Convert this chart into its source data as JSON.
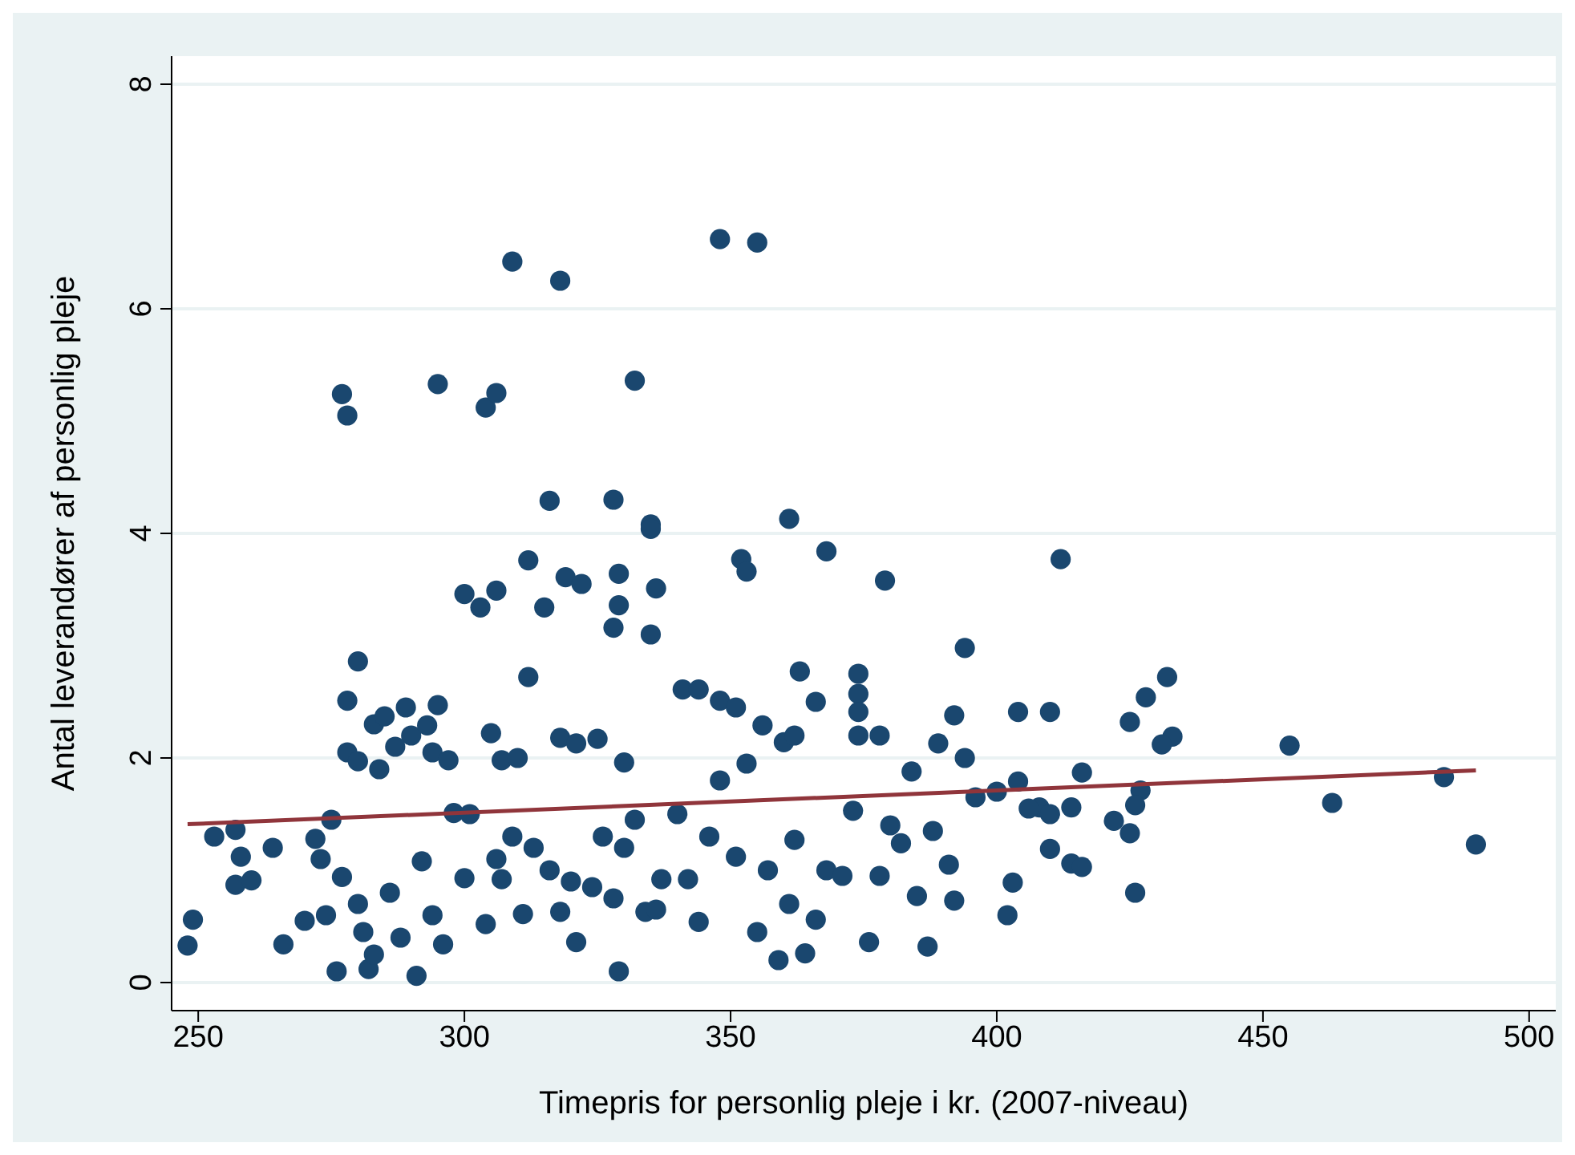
{
  "chart_data": {
    "type": "scatter",
    "xlabel": "Timepris for personlig pleje i kr. (2007-niveau)",
    "ylabel": "Antal leverandører af personlig pleje",
    "xlim": [
      245,
      505
    ],
    "ylim": [
      -0.25,
      8.25
    ],
    "xticks": [
      250,
      300,
      350,
      400,
      450,
      500
    ],
    "yticks": [
      0,
      2,
      4,
      6,
      8
    ],
    "grid": "y",
    "legend": false,
    "series": [
      {
        "marker": "circle",
        "color": "#1a476f",
        "x": [
          309,
          318,
          348,
          355,
          277,
          278,
          295,
          304,
          306,
          332,
          316,
          328,
          335,
          335,
          361,
          312,
          352,
          353,
          368,
          379,
          412,
          300,
          303,
          306,
          315,
          319,
          322,
          329,
          329,
          328,
          336,
          335,
          394,
          280,
          312,
          363,
          374,
          374,
          374,
          374,
          378,
          432,
          428,
          404,
          410,
          425,
          392,
          455,
          484,
          463,
          490,
          433,
          431,
          278,
          283,
          285,
          289,
          295,
          290,
          287,
          278,
          280,
          284,
          293,
          294,
          297,
          305,
          307,
          310,
          318,
          321,
          325,
          330,
          341,
          344,
          348,
          351,
          356,
          360,
          366,
          362,
          389,
          394,
          384,
          400,
          404,
          416,
          408,
          410,
          414,
          422,
          425,
          427,
          426,
          248,
          249,
          253,
          257,
          257,
          258,
          260,
          264,
          266,
          270,
          272,
          273,
          274,
          275,
          276,
          277,
          280,
          281,
          282,
          283,
          286,
          288,
          291,
          292,
          294,
          296,
          298,
          300,
          301,
          304,
          306,
          307,
          309,
          311,
          313,
          316,
          318,
          320,
          321,
          324,
          326,
          328,
          329,
          330,
          332,
          334,
          336,
          337,
          340,
          342,
          344,
          346,
          348,
          351,
          353,
          355,
          357,
          359,
          361,
          362,
          364,
          366,
          368,
          371,
          373,
          376,
          378,
          380,
          382,
          385,
          387,
          388,
          391,
          392,
          396,
          402,
          403,
          406,
          410,
          414,
          416,
          426
        ],
        "values": [
          6.42,
          6.25,
          6.62,
          6.59,
          5.24,
          5.05,
          5.33,
          5.12,
          5.25,
          5.36,
          4.29,
          4.3,
          4.08,
          4.04,
          4.13,
          3.76,
          3.77,
          3.66,
          3.84,
          3.58,
          3.77,
          3.46,
          3.34,
          3.49,
          3.34,
          3.61,
          3.55,
          3.64,
          3.36,
          3.16,
          3.51,
          3.1,
          2.98,
          2.86,
          2.72,
          2.77,
          2.75,
          2.57,
          2.41,
          2.2,
          2.2,
          2.72,
          2.54,
          2.41,
          2.41,
          2.32,
          2.38,
          2.11,
          1.83,
          1.6,
          1.23,
          2.19,
          2.12,
          2.51,
          2.3,
          2.37,
          2.45,
          2.47,
          2.2,
          2.1,
          2.05,
          1.97,
          1.9,
          2.29,
          2.05,
          1.98,
          2.22,
          1.98,
          2.0,
          2.18,
          2.13,
          2.17,
          1.96,
          2.61,
          2.61,
          2.51,
          2.45,
          2.29,
          2.14,
          2.5,
          2.2,
          2.13,
          2.0,
          1.88,
          1.7,
          1.79,
          1.87,
          1.56,
          1.5,
          1.56,
          1.44,
          1.33,
          1.71,
          1.58,
          0.33,
          0.56,
          1.3,
          1.36,
          0.87,
          1.12,
          0.91,
          1.2,
          0.34,
          0.55,
          1.28,
          1.1,
          0.6,
          1.45,
          0.1,
          0.94,
          0.7,
          0.45,
          0.12,
          0.25,
          0.8,
          0.4,
          0.06,
          1.08,
          0.6,
          0.34,
          1.51,
          0.93,
          1.5,
          0.52,
          1.1,
          0.92,
          1.3,
          0.61,
          1.2,
          1.0,
          0.63,
          0.9,
          0.36,
          0.85,
          1.3,
          0.75,
          0.1,
          1.2,
          1.45,
          0.63,
          0.65,
          0.92,
          1.5,
          0.92,
          0.54,
          1.3,
          1.8,
          1.12,
          1.95,
          0.45,
          1.0,
          0.2,
          0.7,
          1.27,
          0.26,
          0.56,
          1.0,
          0.95,
          1.53,
          0.36,
          0.95,
          1.4,
          1.24,
          0.77,
          0.32,
          1.35,
          1.05,
          0.73,
          1.65,
          0.6,
          0.89,
          1.55,
          1.19,
          1.06,
          1.03,
          0.8
        ]
      },
      {
        "type": "line",
        "marker": "none",
        "color": "#90353b",
        "x": [
          248,
          490
        ],
        "values": [
          1.41,
          1.89
        ]
      }
    ]
  }
}
